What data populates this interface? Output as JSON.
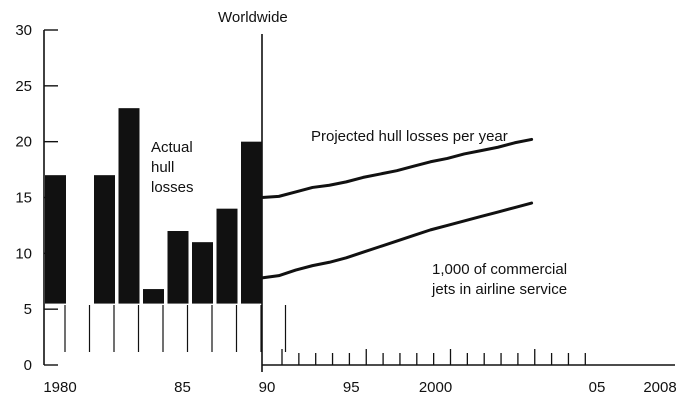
{
  "chart_data": {
    "type": "bar",
    "title": "Worldwide",
    "y_ticks": [
      "0",
      "5",
      "10",
      "15",
      "20",
      "25",
      "30"
    ],
    "ylim": [
      0,
      30
    ],
    "x_tick_labels": [
      {
        "year": 1980,
        "label": "1980"
      },
      {
        "year": 1985,
        "label": "85"
      },
      {
        "year": 1990,
        "label": "90"
      },
      {
        "year": 1995,
        "label": "95"
      },
      {
        "year": 2000,
        "label": "2000"
      },
      {
        "year": 2005,
        "label": "05"
      },
      {
        "year": 2008,
        "label": "2008"
      }
    ],
    "bar_label": "Actual\nhull\nlosses",
    "bars": [
      {
        "year": 1980,
        "value": 17
      },
      {
        "year": 1982,
        "value": 17
      },
      {
        "year": 1983,
        "value": 23
      },
      {
        "year": 1984,
        "value": 6.8
      },
      {
        "year": 1985,
        "value": 12
      },
      {
        "year": 1986,
        "value": 11
      },
      {
        "year": 1987,
        "value": 14
      },
      {
        "year": 1988,
        "value": 20
      }
    ],
    "series": [
      {
        "name": "Projected hull losses per year",
        "x": [
          1990,
          1991,
          1992,
          1993,
          1994,
          1995,
          1996,
          1997,
          1998,
          1999,
          2000,
          2001,
          2002,
          2003,
          2004,
          2005,
          2006
        ],
        "values": [
          15.0,
          15.1,
          15.5,
          15.9,
          16.1,
          16.4,
          16.8,
          17.1,
          17.4,
          17.8,
          18.2,
          18.5,
          18.9,
          19.2,
          19.5,
          19.9,
          20.2
        ]
      },
      {
        "name": "1,000 of commercial\njets in airline service",
        "x": [
          1990,
          1991,
          1992,
          1993,
          1994,
          1995,
          1996,
          1997,
          1998,
          1999,
          2000,
          2001,
          2002,
          2003,
          2004,
          2005,
          2006
        ],
        "values": [
          7.8,
          8.0,
          8.5,
          8.9,
          9.2,
          9.6,
          10.1,
          10.6,
          11.1,
          11.6,
          12.1,
          12.5,
          12.9,
          13.3,
          13.7,
          14.1,
          14.5
        ]
      }
    ]
  }
}
